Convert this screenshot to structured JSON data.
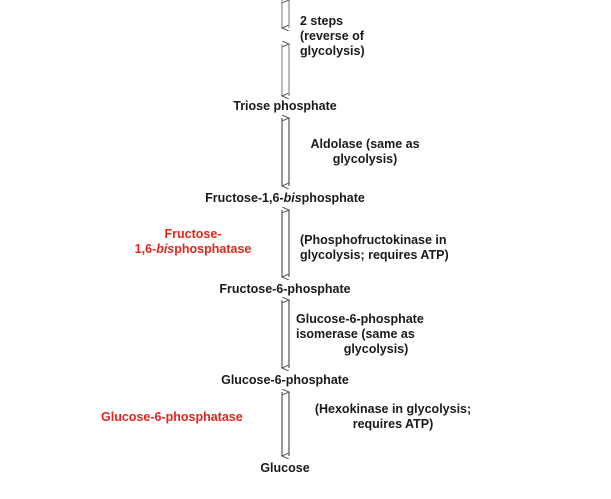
{
  "metabolites": {
    "triose": "Triose phosphate",
    "f16bp_a": "Fructose-1,6-",
    "f16bp_b": "bis",
    "f16bp_c": "phosphate",
    "f6p": "Fructose-6-phosphate",
    "g6p": "Glucose-6-phosphate",
    "glucose": "Glucose"
  },
  "notes": {
    "top_1": "2 steps",
    "top_2": "(reverse of",
    "top_3": "glycolysis)",
    "aldolase_1": "Aldolase (same as",
    "aldolase_2": "glycolysis)",
    "pfk_1": "(Phosphofructokinase in",
    "pfk_2": "glycolysis; requires ATP)",
    "isomerase_1": "Glucose-6-phosphate",
    "isomerase_2": "isomerase (same as",
    "isomerase_3": "glycolysis)",
    "hexokinase_1": "(Hexokinase in glycolysis;",
    "hexokinase_2": "requires ATP)"
  },
  "gluconeogenic_enzymes": {
    "fbpase_1": "Fructose-",
    "fbpase_2a": "1,6-",
    "fbpase_2b": "bis",
    "fbpase_2c": "phosphatase",
    "g6pase": "Glucose-6-phosphatase"
  },
  "colors": {
    "enzyme_red": "#e8231c",
    "text": "#1a1a1a",
    "arrow": "#555555"
  }
}
